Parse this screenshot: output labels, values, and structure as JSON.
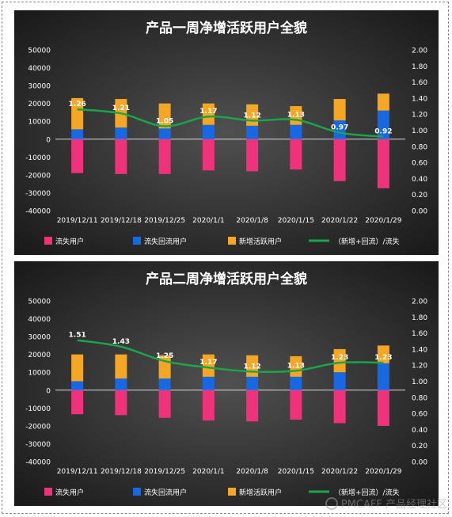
{
  "colors": {
    "lost": "#f0327a",
    "returned": "#1768e3",
    "new": "#f5a623",
    "ratio": "#18a64a",
    "bg_center": "#505050",
    "bg_edge": "#151515"
  },
  "watermark": "PMCAFF 产品经理社区",
  "chart_data": [
    {
      "type": "bar",
      "title": "产品一周净增活跃用户全貌",
      "categories": [
        "2019/12/11",
        "2019/12/18",
        "2019/12/25",
        "2020/1/1",
        "2020/1/8",
        "2020/1/15",
        "2020/1/22",
        "2020/1/29"
      ],
      "ylim": [
        -40000,
        50000
      ],
      "y_ticks": [
        50000,
        40000,
        30000,
        20000,
        10000,
        0,
        -10000,
        -20000,
        -30000,
        -40000
      ],
      "y2lim": [
        0,
        2.0
      ],
      "y2_ticks": [
        "2.00",
        "1.80",
        "1.60",
        "1.40",
        "1.20",
        "1.00",
        "0.80",
        "0.60",
        "0.40",
        "0.20",
        "0.00"
      ],
      "legend_position": "bottom",
      "series": [
        {
          "name": "流失用户",
          "kind": "bar",
          "values": [
            -19000,
            -19500,
            -19500,
            -17500,
            -18000,
            -17000,
            -23500,
            -27500
          ]
        },
        {
          "name": "流失回流用户",
          "kind": "bar",
          "values": [
            5500,
            6500,
            6000,
            8000,
            7500,
            8000,
            10500,
            16000
          ]
        },
        {
          "name": "新增活跃用户",
          "kind": "bar",
          "values": [
            17500,
            16000,
            14000,
            12000,
            12000,
            10500,
            12000,
            9500
          ]
        },
        {
          "name": "（新增+回流）/流失",
          "kind": "line",
          "axis": "right",
          "values": [
            1.26,
            1.21,
            1.05,
            1.17,
            1.12,
            1.13,
            0.97,
            0.92
          ],
          "labels": [
            "1.26",
            "1.21",
            "1.05",
            "1.17",
            "1.12",
            "1.13",
            "0.97",
            "0.92"
          ]
        }
      ]
    },
    {
      "type": "bar",
      "title": "产品二周净增活跃用户全貌",
      "categories": [
        "2019/12/11",
        "2019/12/18",
        "2019/12/25",
        "2020/1/1",
        "2020/1/8",
        "2020/1/15",
        "2020/1/22",
        "2020/1/29"
      ],
      "ylim": [
        -40000,
        50000
      ],
      "y_ticks": [
        50000,
        40000,
        30000,
        20000,
        10000,
        0,
        -10000,
        -20000,
        -30000,
        -40000
      ],
      "y2lim": [
        0,
        2.0
      ],
      "y2_ticks": [
        "2.00",
        "1.80",
        "1.60",
        "1.40",
        "1.20",
        "1.00",
        "0.80",
        "0.60",
        "0.40",
        "0.20",
        "0.00"
      ],
      "legend_position": "bottom",
      "series": [
        {
          "name": "流失用户",
          "kind": "bar",
          "values": [
            -13500,
            -14000,
            -15500,
            -17000,
            -17500,
            -16500,
            -18500,
            -20000
          ]
        },
        {
          "name": "流失回流用户",
          "kind": "bar",
          "values": [
            5000,
            6500,
            6500,
            7500,
            7500,
            7500,
            10000,
            15000
          ]
        },
        {
          "name": "新增活跃用户",
          "kind": "bar",
          "values": [
            15000,
            13500,
            13000,
            12500,
            12000,
            11500,
            13000,
            10000
          ]
        },
        {
          "name": "（新增+回流）/流失",
          "kind": "line",
          "axis": "right",
          "values": [
            1.51,
            1.43,
            1.25,
            1.17,
            1.12,
            1.13,
            1.23,
            1.23
          ],
          "labels": [
            "1.51",
            "1.43",
            "1.25",
            "1.17",
            "1.12",
            "1.13",
            "1.23",
            "1.23"
          ]
        }
      ]
    }
  ]
}
